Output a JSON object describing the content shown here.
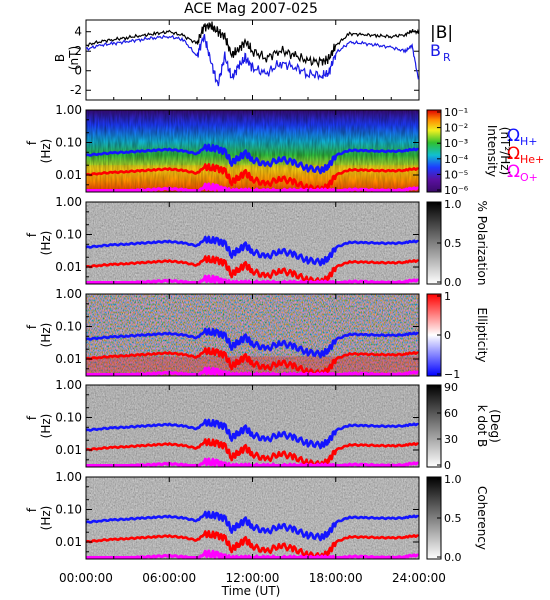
{
  "figure": {
    "title": "ACE Mag 2007-025",
    "x_axis_label": "Time (UT)",
    "x_tick_labels": [
      "00:00:00",
      "06:00:00",
      "12:00:00",
      "18:00:00",
      "24:00:00"
    ]
  },
  "legend": {
    "b_total": "|B|",
    "b_r": "B",
    "b_r_sub": "R",
    "omega": "Ω",
    "h_sub": "H+",
    "he_sub": "He+",
    "o_sub": "O+"
  },
  "colors": {
    "b_total": "#000000",
    "b_r": "#1a1ae6",
    "omega_h": "#1414ff",
    "omega_he": "#ff0000",
    "omega_o": "#ff00ff"
  },
  "chart_data": [
    {
      "type": "line",
      "panel": "magnetic-field",
      "ylabel": "B",
      "yunit": "(nT)",
      "ylim": [
        -3,
        5.2
      ],
      "yticks": [
        -2,
        0,
        2,
        4
      ],
      "xlim": [
        0,
        24
      ],
      "series": [
        {
          "name": "|B|",
          "color": "#000000",
          "x": [
            0,
            1,
            2,
            3,
            4,
            5,
            6,
            7,
            8,
            8.5,
            9,
            9.5,
            10,
            10.5,
            11,
            11.5,
            12,
            13,
            14,
            15,
            16,
            17,
            17.5,
            18,
            19,
            20,
            21,
            22,
            23,
            23.5,
            24
          ],
          "y": [
            2.6,
            3.0,
            3.2,
            3.4,
            3.6,
            3.8,
            4.0,
            3.6,
            2.8,
            4.5,
            4.6,
            4.0,
            3.5,
            1.6,
            2.2,
            3.0,
            2.0,
            1.3,
            2.1,
            1.6,
            1.0,
            0.9,
            1.2,
            2.6,
            3.8,
            3.7,
            3.6,
            3.5,
            3.7,
            4.1,
            3.9
          ]
        },
        {
          "name": "B_R",
          "color": "#1a1ae6",
          "x": [
            0,
            1,
            2,
            3,
            4,
            5,
            6,
            7,
            8,
            8.5,
            9,
            9.5,
            10,
            10.5,
            11,
            11.5,
            12,
            13,
            14,
            15,
            16,
            17,
            17.5,
            18,
            19,
            20,
            21,
            22,
            23,
            23.5,
            24
          ],
          "y": [
            2.2,
            2.6,
            2.8,
            3.0,
            3.2,
            3.4,
            3.5,
            3.2,
            1.5,
            3.6,
            1.0,
            -1.5,
            1.5,
            -0.8,
            0.5,
            1.3,
            0.3,
            -0.3,
            0.8,
            0.4,
            -0.3,
            -0.5,
            -0.2,
            1.8,
            2.9,
            2.8,
            2.6,
            2.4,
            2.0,
            2.6,
            -1.2
          ]
        }
      ]
    },
    {
      "type": "heatmap",
      "panel": "power-spectrum",
      "ylabel": "f",
      "yunit": "(Hz)",
      "ylim": [
        0.003,
        1.0
      ],
      "yscale": "log",
      "ytick_labels": [
        "1.00",
        "0.10",
        "0.01"
      ],
      "colorbar": {
        "label": "Intensity",
        "unit": "(nT²/Hz)",
        "ticks": [
          "10⁻¹",
          "10⁻²",
          "10⁻³",
          "10⁻⁴",
          "10⁻⁵",
          "10⁻⁶"
        ],
        "scale": "rainbow"
      },
      "cyclotron_lines": true
    },
    {
      "type": "heatmap",
      "panel": "polarization",
      "ylabel": "f",
      "yunit": "(Hz)",
      "ylim": [
        0.003,
        1.0
      ],
      "yscale": "log",
      "ytick_labels": [
        "1.00",
        "0.10",
        "0.01"
      ],
      "colorbar": {
        "label": "% Polarization",
        "ticks": [
          "1.0",
          "0.5",
          "0.0"
        ],
        "scale": "gray"
      },
      "cyclotron_lines": true
    },
    {
      "type": "heatmap",
      "panel": "ellipticity",
      "ylabel": "f",
      "yunit": "(Hz)",
      "ylim": [
        0.003,
        1.0
      ],
      "yscale": "log",
      "ytick_labels": [
        "1.00",
        "0.10",
        "0.01"
      ],
      "colorbar": {
        "label": "Ellipticity",
        "ticks": [
          "1",
          "0",
          "−1"
        ],
        "scale": "bwr"
      },
      "cyclotron_lines": true
    },
    {
      "type": "heatmap",
      "panel": "wave-normal-angle",
      "ylabel": "f",
      "yunit": "(Hz)",
      "ylim": [
        0.003,
        1.0
      ],
      "yscale": "log",
      "ytick_labels": [
        "1.00",
        "0.10",
        "0.01"
      ],
      "colorbar": {
        "label": "k dot B",
        "unit": "(Deg)",
        "ticks": [
          "90",
          "60",
          "30",
          "0"
        ],
        "scale": "gray"
      },
      "cyclotron_lines": true
    },
    {
      "type": "heatmap",
      "panel": "coherency",
      "ylabel": "f",
      "yunit": "(Hz)",
      "ylim": [
        0.003,
        1.0
      ],
      "yscale": "log",
      "ytick_labels": [
        "1.00",
        "0.10",
        "0.01"
      ],
      "colorbar": {
        "label": "Coherency",
        "ticks": [
          "1.0",
          "0.5",
          "0.0"
        ],
        "scale": "gray"
      },
      "cyclotron_lines": true
    }
  ],
  "cyclotron": {
    "x": [
      0,
      1,
      2,
      3,
      4,
      5,
      6,
      7,
      8,
      8.5,
      9,
      9.5,
      10,
      10.5,
      11,
      11.5,
      12,
      13,
      14,
      15,
      16,
      17,
      17.5,
      18,
      19,
      20,
      21,
      22,
      23,
      23.5,
      24
    ],
    "h_plus_hz": [
      0.04,
      0.045,
      0.048,
      0.051,
      0.054,
      0.058,
      0.061,
      0.055,
      0.045,
      0.068,
      0.07,
      0.062,
      0.053,
      0.024,
      0.034,
      0.046,
      0.03,
      0.02,
      0.032,
      0.024,
      0.016,
      0.014,
      0.019,
      0.04,
      0.058,
      0.056,
      0.055,
      0.053,
      0.056,
      0.062,
      0.06
    ],
    "he_plus_hz": [
      0.01,
      0.0113,
      0.012,
      0.0128,
      0.0135,
      0.0145,
      0.0153,
      0.0138,
      0.0113,
      0.017,
      0.0175,
      0.0155,
      0.0133,
      0.006,
      0.0085,
      0.0115,
      0.0075,
      0.005,
      0.008,
      0.006,
      0.004,
      0.0035,
      0.0048,
      0.01,
      0.0145,
      0.014,
      0.0138,
      0.0133,
      0.014,
      0.0155,
      0.015
    ],
    "o_plus_hz": [
      0.003,
      0.003,
      0.003,
      0.0032,
      0.0034,
      0.0036,
      0.0038,
      0.0035,
      0.003,
      0.0042,
      0.0044,
      0.0039,
      0.0033,
      0.003,
      0.003,
      0.003,
      0.003,
      0.003,
      0.003,
      0.003,
      0.003,
      0.003,
      0.003,
      0.003,
      0.0036,
      0.0035,
      0.0034,
      0.0033,
      0.0035,
      0.0039,
      0.0038
    ]
  }
}
